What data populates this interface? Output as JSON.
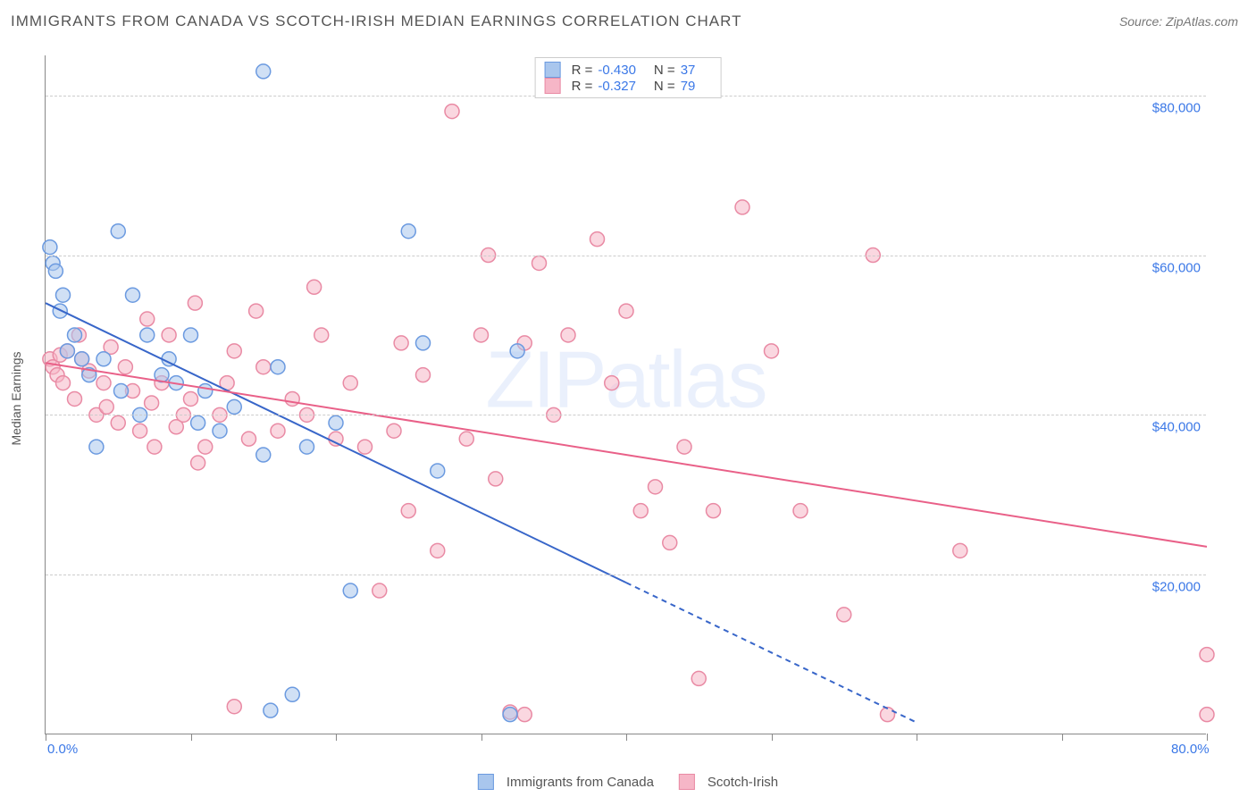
{
  "title": "IMMIGRANTS FROM CANADA VS SCOTCH-IRISH MEDIAN EARNINGS CORRELATION CHART",
  "source": "Source: ZipAtlas.com",
  "watermark_main": "ZIP",
  "watermark_sub": "atlas",
  "y_axis_title": "Median Earnings",
  "chart": {
    "type": "scatter",
    "background_color": "#ffffff",
    "grid_color": "#cccccc",
    "axis_color": "#888888",
    "tick_font_color": "#3b78e7",
    "tick_fontsize": 15,
    "xlim": [
      0,
      80
    ],
    "ylim": [
      0,
      85000
    ],
    "x_ticks": [
      0,
      10,
      20,
      30,
      40,
      50,
      60,
      70,
      80
    ],
    "x_tick_labels": {
      "0": "0.0%",
      "80": "80.0%"
    },
    "y_gridlines": [
      20000,
      40000,
      60000,
      80000
    ],
    "y_tick_labels": {
      "20000": "$20,000",
      "40000": "$40,000",
      "60000": "$60,000",
      "80000": "$80,000"
    },
    "marker_radius": 8,
    "line_width": 2,
    "series": [
      {
        "name": "Immigrants from Canada",
        "fill": "#a9c6ed",
        "stroke": "#6b9ae0",
        "line_color": "#3866c9",
        "fill_opacity": 0.55,
        "R_label": "R =",
        "R": "-0.430",
        "N_label": "N =",
        "N": "37",
        "trend": {
          "x1": 0,
          "y1": 54000,
          "x2": 40,
          "y2": 19000,
          "dash_from_x": 40,
          "dash_to_x": 60,
          "dash_to_y": 1500
        },
        "points": [
          [
            0.3,
            61000
          ],
          [
            0.5,
            59000
          ],
          [
            0.7,
            58000
          ],
          [
            1.0,
            53000
          ],
          [
            1.5,
            48000
          ],
          [
            1.2,
            55000
          ],
          [
            2.0,
            50000
          ],
          [
            2.5,
            47000
          ],
          [
            3.0,
            45000
          ],
          [
            3.5,
            36000
          ],
          [
            4.0,
            47000
          ],
          [
            5.0,
            63000
          ],
          [
            5.2,
            43000
          ],
          [
            6.0,
            55000
          ],
          [
            6.5,
            40000
          ],
          [
            7.0,
            50000
          ],
          [
            8.0,
            45000
          ],
          [
            8.5,
            47000
          ],
          [
            9.0,
            44000
          ],
          [
            10.0,
            50000
          ],
          [
            10.5,
            39000
          ],
          [
            11.0,
            43000
          ],
          [
            12.0,
            38000
          ],
          [
            13.0,
            41000
          ],
          [
            15.0,
            35000
          ],
          [
            15.5,
            3000
          ],
          [
            16.0,
            46000
          ],
          [
            17.0,
            5000
          ],
          [
            18.0,
            36000
          ],
          [
            20.0,
            39000
          ],
          [
            21.0,
            18000
          ],
          [
            15.0,
            83000
          ],
          [
            25.0,
            63000
          ],
          [
            26.0,
            49000
          ],
          [
            27.0,
            33000
          ],
          [
            32.0,
            2500
          ],
          [
            32.5,
            48000
          ]
        ]
      },
      {
        "name": "Scotch-Irish",
        "fill": "#f6b6c7",
        "stroke": "#e98aa4",
        "line_color": "#e96088",
        "fill_opacity": 0.55,
        "R_label": "R =",
        "R": "-0.327",
        "N_label": "N =",
        "N": "79",
        "trend": {
          "x1": 0,
          "y1": 46500,
          "x2": 80,
          "y2": 23500
        },
        "points": [
          [
            0.3,
            47000
          ],
          [
            0.5,
            46000
          ],
          [
            0.8,
            45000
          ],
          [
            1.0,
            47500
          ],
          [
            1.2,
            44000
          ],
          [
            1.5,
            48000
          ],
          [
            2.0,
            42000
          ],
          [
            2.3,
            50000
          ],
          [
            2.5,
            47000
          ],
          [
            3.0,
            45500
          ],
          [
            3.5,
            40000
          ],
          [
            4.0,
            44000
          ],
          [
            4.2,
            41000
          ],
          [
            4.5,
            48500
          ],
          [
            5.0,
            39000
          ],
          [
            5.5,
            46000
          ],
          [
            6.0,
            43000
          ],
          [
            6.5,
            38000
          ],
          [
            7.0,
            52000
          ],
          [
            7.3,
            41500
          ],
          [
            7.5,
            36000
          ],
          [
            8.0,
            44000
          ],
          [
            8.5,
            50000
          ],
          [
            9.0,
            38500
          ],
          [
            9.5,
            40000
          ],
          [
            10.0,
            42000
          ],
          [
            10.3,
            54000
          ],
          [
            10.5,
            34000
          ],
          [
            11.0,
            36000
          ],
          [
            12.0,
            40000
          ],
          [
            12.5,
            44000
          ],
          [
            13.0,
            48000
          ],
          [
            13.0,
            3500
          ],
          [
            14.0,
            37000
          ],
          [
            14.5,
            53000
          ],
          [
            15.0,
            46000
          ],
          [
            16.0,
            38000
          ],
          [
            17.0,
            42000
          ],
          [
            18.0,
            40000
          ],
          [
            18.5,
            56000
          ],
          [
            19.0,
            50000
          ],
          [
            20.0,
            37000
          ],
          [
            21.0,
            44000
          ],
          [
            22.0,
            36000
          ],
          [
            23.0,
            18000
          ],
          [
            24.0,
            38000
          ],
          [
            24.5,
            49000
          ],
          [
            25.0,
            28000
          ],
          [
            26.0,
            45000
          ],
          [
            27.0,
            23000
          ],
          [
            28.0,
            78000
          ],
          [
            29.0,
            37000
          ],
          [
            30.0,
            50000
          ],
          [
            30.5,
            60000
          ],
          [
            31.0,
            32000
          ],
          [
            32.0,
            2800
          ],
          [
            33.0,
            49000
          ],
          [
            34.0,
            59000
          ],
          [
            35.0,
            40000
          ],
          [
            36.0,
            50000
          ],
          [
            38.0,
            62000
          ],
          [
            39.0,
            44000
          ],
          [
            40.0,
            53000
          ],
          [
            41.0,
            28000
          ],
          [
            42.0,
            31000
          ],
          [
            43.0,
            24000
          ],
          [
            44.0,
            36000
          ],
          [
            45.0,
            7000
          ],
          [
            46.0,
            28000
          ],
          [
            48.0,
            66000
          ],
          [
            50.0,
            48000
          ],
          [
            52.0,
            28000
          ],
          [
            55.0,
            15000
          ],
          [
            57.0,
            60000
          ],
          [
            58.0,
            2500
          ],
          [
            63.0,
            23000
          ],
          [
            80.0,
            10000
          ],
          [
            80.0,
            2500
          ],
          [
            33.0,
            2500
          ]
        ]
      }
    ]
  },
  "legend": {
    "series1_label": "Immigrants from Canada",
    "series2_label": "Scotch-Irish"
  }
}
